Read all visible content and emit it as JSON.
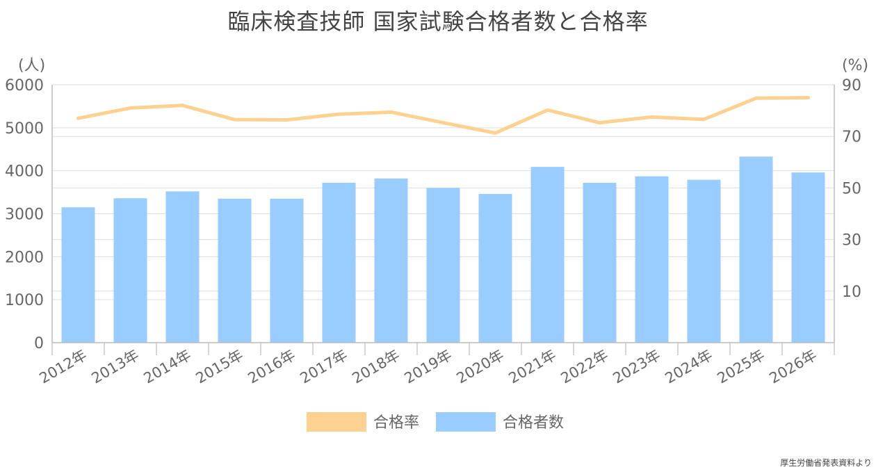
{
  "title": "臨床検査技師 国家試験合格者数と合格率",
  "source": "厚生労働省発表資料より",
  "colors": {
    "bars": "#99ccff",
    "line": "#fdd290",
    "grid": "#dddddd",
    "axis": "#bbbbbb"
  },
  "chart_data": {
    "type": "bar",
    "categories": [
      "2012年",
      "2013年",
      "2014年",
      "2015年",
      "2016年",
      "2017年",
      "2018年",
      "2019年",
      "2020年",
      "2021年",
      "2022年",
      "2023年",
      "2024年",
      "2025年",
      "2026年"
    ],
    "series": [
      {
        "name": "合格者数",
        "type": "bar",
        "axis": "left",
        "values": [
          3150,
          3360,
          3520,
          3350,
          3350,
          3720,
          3820,
          3600,
          3460,
          4090,
          3720,
          3870,
          3790,
          4330,
          3960
        ]
      },
      {
        "name": "合格率",
        "type": "line",
        "axis": "right",
        "values": [
          77.0,
          81.0,
          82.0,
          76.5,
          76.4,
          78.6,
          79.4,
          75.3,
          71.3,
          80.2,
          75.3,
          77.5,
          76.6,
          84.8,
          85.0
        ]
      }
    ],
    "y_left": {
      "unit": "(人)",
      "min": 0,
      "max": 6000,
      "ticks": [
        0,
        1000,
        2000,
        3000,
        4000,
        5000,
        6000
      ]
    },
    "y_right": {
      "unit": "(%)",
      "min": -10,
      "max": 90,
      "ticks": [
        10,
        30,
        50,
        70,
        90
      ]
    },
    "legend": {
      "position": "bottom",
      "order": [
        "合格率",
        "合格者数"
      ]
    },
    "grid": true
  }
}
